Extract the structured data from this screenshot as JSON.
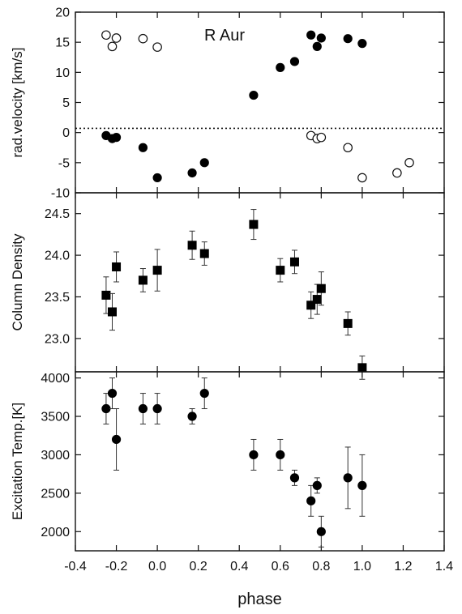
{
  "chart_data": [
    {
      "type": "scatter",
      "title": "",
      "annotation": "R Aur",
      "xlabel": "phase",
      "ylabel": "rad.velocity [km/s]",
      "xlim": [
        -0.4,
        1.4
      ],
      "ylim": [
        -10,
        20
      ],
      "yticks": [
        -10,
        -5,
        0,
        5,
        10,
        15,
        20
      ],
      "reference_line": 0.7,
      "series": [
        {
          "marker": "filled-circle",
          "x": [
            -0.25,
            -0.22,
            -0.2,
            -0.07,
            0.0,
            0.17,
            0.23,
            0.47,
            0.6,
            0.67,
            0.75,
            0.78,
            0.8,
            0.93,
            1.0
          ],
          "y": [
            -0.5,
            -1.0,
            -0.8,
            -2.5,
            -7.5,
            -6.7,
            -5.0,
            6.2,
            10.8,
            11.8,
            16.2,
            14.3,
            15.7,
            15.6,
            14.8
          ]
        },
        {
          "marker": "open-circle",
          "x": [
            -0.25,
            -0.22,
            -0.2,
            -0.07,
            0.0,
            0.75,
            0.78,
            0.8,
            0.93,
            1.0,
            1.17,
            1.23
          ],
          "y": [
            16.2,
            14.3,
            15.7,
            15.6,
            14.2,
            -0.5,
            -1.0,
            -0.8,
            -2.5,
            -7.5,
            -6.7,
            -5.0
          ]
        }
      ]
    },
    {
      "type": "scatter",
      "title": "",
      "xlabel": "phase",
      "ylabel": "Column Density",
      "xlim": [
        -0.4,
        1.4
      ],
      "ylim": [
        22.6,
        24.75
      ],
      "yticks": [
        23.0,
        23.5,
        24.0,
        24.5
      ],
      "ytick_labels": [
        "23.0",
        "23.5",
        "24.0",
        "24.5"
      ],
      "series": [
        {
          "marker": "filled-square",
          "x": [
            -0.25,
            -0.22,
            -0.2,
            -0.07,
            0.0,
            0.17,
            0.23,
            0.47,
            0.6,
            0.67,
            0.75,
            0.78,
            0.8,
            0.93,
            1.0
          ],
          "y": [
            23.52,
            23.32,
            23.86,
            23.7,
            23.82,
            24.12,
            24.02,
            24.37,
            23.82,
            23.92,
            23.4,
            23.47,
            23.6,
            23.18,
            22.65
          ],
          "err": [
            0.22,
            0.22,
            0.18,
            0.14,
            0.25,
            0.17,
            0.14,
            0.18,
            0.14,
            0.14,
            0.16,
            0.18,
            0.2,
            0.14,
            0.14
          ]
        }
      ]
    },
    {
      "type": "scatter",
      "title": "",
      "xlabel": "phase",
      "ylabel": "Excitation Temp.[K]",
      "xlim": [
        -0.4,
        1.4
      ],
      "xticks": [
        -0.4,
        -0.2,
        0.0,
        0.2,
        0.4,
        0.6,
        0.8,
        1.0,
        1.2,
        1.4
      ],
      "xtick_labels": [
        "-0.4",
        "-0.2",
        "0.0",
        "0.2",
        "0.4",
        "0.6",
        "0.8",
        "1.0",
        "1.2",
        "1.4"
      ],
      "ylim": [
        1750,
        4080
      ],
      "yticks": [
        2000,
        2500,
        3000,
        3500,
        4000
      ],
      "series": [
        {
          "marker": "filled-circle",
          "x": [
            -0.25,
            -0.22,
            -0.2,
            -0.07,
            0.0,
            0.17,
            0.23,
            0.47,
            0.6,
            0.67,
            0.75,
            0.78,
            0.8,
            0.93,
            1.0
          ],
          "y": [
            3600,
            3800,
            3200,
            3600,
            3600,
            3500,
            3800,
            3000,
            3000,
            2700,
            2400,
            2600,
            2000,
            2700,
            2600
          ],
          "err": [
            200,
            200,
            400,
            200,
            200,
            100,
            200,
            200,
            200,
            100,
            200,
            100,
            200,
            400,
            400
          ]
        }
      ]
    }
  ]
}
